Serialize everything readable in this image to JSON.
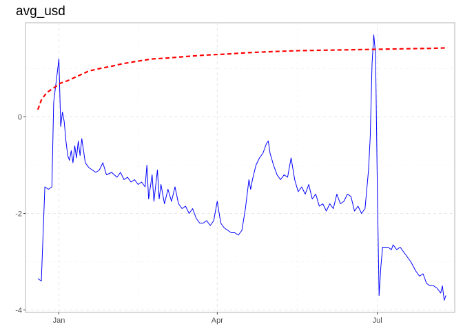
{
  "chart_data": {
    "type": "line",
    "title": "avg_usd",
    "xlabel": "",
    "ylabel": "",
    "x_range": [
      "2022-12-13",
      "2023-08-14"
    ],
    "ylim": [
      -4.05,
      1.95
    ],
    "grid": true,
    "grid_style": "dashed",
    "x_ticks": [
      {
        "date": "2023-01-01",
        "label": "Jan"
      },
      {
        "date": "2023-04-01",
        "label": "Apr"
      },
      {
        "date": "2023-07-01",
        "label": "Jul"
      }
    ],
    "y_ticks": [
      {
        "value": -4,
        "label": "-4"
      },
      {
        "value": -2,
        "label": "-2"
      },
      {
        "value": 0,
        "label": "0"
      }
    ],
    "series": [
      {
        "color": "#0000ff",
        "style": "solid",
        "points": [
          [
            "2022-12-20",
            -3.35
          ],
          [
            "2022-12-22",
            -3.4
          ],
          [
            "2022-12-24",
            -1.45
          ],
          [
            "2022-12-26",
            -1.5
          ],
          [
            "2022-12-28",
            -1.45
          ],
          [
            "2022-12-29",
            0.3
          ],
          [
            "2022-12-30",
            0.6
          ],
          [
            "2022-12-31",
            0.9
          ],
          [
            "2023-01-01",
            1.2
          ],
          [
            "2023-01-02",
            -0.2
          ],
          [
            "2023-01-03",
            0.1
          ],
          [
            "2023-01-04",
            -0.1
          ],
          [
            "2023-01-05",
            -0.5
          ],
          [
            "2023-01-06",
            -0.8
          ],
          [
            "2023-01-07",
            -0.9
          ],
          [
            "2023-01-08",
            -0.7
          ],
          [
            "2023-01-09",
            -0.95
          ],
          [
            "2023-01-10",
            -0.6
          ],
          [
            "2023-01-11",
            -0.85
          ],
          [
            "2023-01-12",
            -0.5
          ],
          [
            "2023-01-13",
            -0.8
          ],
          [
            "2023-01-14",
            -0.45
          ],
          [
            "2023-01-16",
            -0.95
          ],
          [
            "2023-01-18",
            -1.05
          ],
          [
            "2023-01-20",
            -1.1
          ],
          [
            "2023-01-22",
            -1.15
          ],
          [
            "2023-01-24",
            -1.1
          ],
          [
            "2023-01-26",
            -0.95
          ],
          [
            "2023-01-28",
            -1.2
          ],
          [
            "2023-01-31",
            -1.15
          ],
          [
            "2023-02-03",
            -1.25
          ],
          [
            "2023-02-05",
            -1.15
          ],
          [
            "2023-02-07",
            -1.3
          ],
          [
            "2023-02-09",
            -1.25
          ],
          [
            "2023-02-11",
            -1.35
          ],
          [
            "2023-02-13",
            -1.3
          ],
          [
            "2023-02-15",
            -1.4
          ],
          [
            "2023-02-17",
            -1.35
          ],
          [
            "2023-02-19",
            -1.45
          ],
          [
            "2023-02-20",
            -1.0
          ],
          [
            "2023-02-21",
            -1.7
          ],
          [
            "2023-02-23",
            -1.2
          ],
          [
            "2023-02-24",
            -1.75
          ],
          [
            "2023-02-26",
            -1.1
          ],
          [
            "2023-02-27",
            -1.7
          ],
          [
            "2023-02-28",
            -1.4
          ],
          [
            "2023-03-02",
            -1.8
          ],
          [
            "2023-03-04",
            -1.5
          ],
          [
            "2023-03-06",
            -1.75
          ],
          [
            "2023-03-08",
            -1.45
          ],
          [
            "2023-03-10",
            -1.8
          ],
          [
            "2023-03-12",
            -1.9
          ],
          [
            "2023-03-14",
            -1.85
          ],
          [
            "2023-03-16",
            -2.0
          ],
          [
            "2023-03-18",
            -1.9
          ],
          [
            "2023-03-20",
            -2.1
          ],
          [
            "2023-03-22",
            -2.2
          ],
          [
            "2023-03-24",
            -2.2
          ],
          [
            "2023-03-26",
            -2.15
          ],
          [
            "2023-03-28",
            -2.25
          ],
          [
            "2023-03-30",
            -2.15
          ],
          [
            "2023-04-01",
            -1.75
          ],
          [
            "2023-04-03",
            -2.2
          ],
          [
            "2023-04-05",
            -2.3
          ],
          [
            "2023-04-07",
            -2.35
          ],
          [
            "2023-04-09",
            -2.4
          ],
          [
            "2023-04-11",
            -2.4
          ],
          [
            "2023-04-13",
            -2.45
          ],
          [
            "2023-04-15",
            -2.35
          ],
          [
            "2023-04-17",
            -1.9
          ],
          [
            "2023-04-19",
            -1.3
          ],
          [
            "2023-04-20",
            -1.5
          ],
          [
            "2023-04-21",
            -1.3
          ],
          [
            "2023-04-23",
            -1.0
          ],
          [
            "2023-04-25",
            -0.85
          ],
          [
            "2023-04-27",
            -0.75
          ],
          [
            "2023-04-29",
            -0.55
          ],
          [
            "2023-04-30",
            -0.5
          ],
          [
            "2023-05-01",
            -0.75
          ],
          [
            "2023-05-03",
            -1.0
          ],
          [
            "2023-05-05",
            -1.2
          ],
          [
            "2023-05-07",
            -1.3
          ],
          [
            "2023-05-09",
            -1.2
          ],
          [
            "2023-05-11",
            -1.25
          ],
          [
            "2023-05-13",
            -0.85
          ],
          [
            "2023-05-15",
            -1.3
          ],
          [
            "2023-05-17",
            -1.55
          ],
          [
            "2023-05-19",
            -1.45
          ],
          [
            "2023-05-21",
            -1.6
          ],
          [
            "2023-05-23",
            -1.4
          ],
          [
            "2023-05-25",
            -1.7
          ],
          [
            "2023-05-27",
            -1.6
          ],
          [
            "2023-05-29",
            -1.85
          ],
          [
            "2023-05-31",
            -1.8
          ],
          [
            "2023-06-02",
            -1.95
          ],
          [
            "2023-06-04",
            -1.8
          ],
          [
            "2023-06-06",
            -1.9
          ],
          [
            "2023-06-08",
            -1.6
          ],
          [
            "2023-06-10",
            -1.8
          ],
          [
            "2023-06-12",
            -1.75
          ],
          [
            "2023-06-14",
            -1.6
          ],
          [
            "2023-06-16",
            -1.65
          ],
          [
            "2023-06-18",
            -1.95
          ],
          [
            "2023-06-20",
            -1.85
          ],
          [
            "2023-06-22",
            -2.0
          ],
          [
            "2023-06-24",
            -1.9
          ],
          [
            "2023-06-26",
            -1.1
          ],
          [
            "2023-06-27",
            -0.4
          ],
          [
            "2023-06-28",
            1.1
          ],
          [
            "2023-06-29",
            1.7
          ],
          [
            "2023-06-30",
            1.3
          ],
          [
            "2023-07-01",
            -1.5
          ],
          [
            "2023-07-02",
            -3.7
          ],
          [
            "2023-07-03",
            -3.1
          ],
          [
            "2023-07-04",
            -2.7
          ],
          [
            "2023-07-07",
            -2.7
          ],
          [
            "2023-07-09",
            -2.75
          ],
          [
            "2023-07-10",
            -2.65
          ],
          [
            "2023-07-12",
            -2.75
          ],
          [
            "2023-07-14",
            -2.7
          ],
          [
            "2023-07-17",
            -2.85
          ],
          [
            "2023-07-20",
            -3.0
          ],
          [
            "2023-07-23",
            -3.2
          ],
          [
            "2023-07-25",
            -3.3
          ],
          [
            "2023-07-27",
            -3.25
          ],
          [
            "2023-07-29",
            -3.45
          ],
          [
            "2023-07-31",
            -3.5
          ],
          [
            "2023-08-02",
            -3.5
          ],
          [
            "2023-08-04",
            -3.55
          ],
          [
            "2023-08-06",
            -3.65
          ],
          [
            "2023-08-07",
            -3.5
          ],
          [
            "2023-08-08",
            -3.8
          ],
          [
            "2023-08-09",
            -3.7
          ]
        ]
      },
      {
        "color": "#ff0000",
        "style": "dashed",
        "points": [
          [
            "2022-12-20",
            0.15
          ],
          [
            "2022-12-22",
            0.35
          ],
          [
            "2022-12-25",
            0.5
          ],
          [
            "2022-12-29",
            0.6
          ],
          [
            "2023-01-02",
            0.7
          ],
          [
            "2023-01-06",
            0.75
          ],
          [
            "2023-01-12",
            0.85
          ],
          [
            "2023-01-18",
            0.95
          ],
          [
            "2023-01-24",
            1.0
          ],
          [
            "2023-01-31",
            1.05
          ],
          [
            "2023-02-06",
            1.1
          ],
          [
            "2023-02-14",
            1.15
          ],
          [
            "2023-02-23",
            1.2
          ],
          [
            "2023-03-04",
            1.22
          ],
          [
            "2023-03-14",
            1.25
          ],
          [
            "2023-03-25",
            1.28
          ],
          [
            "2023-04-06",
            1.3
          ],
          [
            "2023-04-18",
            1.33
          ],
          [
            "2023-05-01",
            1.35
          ],
          [
            "2023-05-15",
            1.37
          ],
          [
            "2023-05-30",
            1.38
          ],
          [
            "2023-06-15",
            1.39
          ],
          [
            "2023-07-01",
            1.4
          ],
          [
            "2023-07-15",
            1.41
          ],
          [
            "2023-08-01",
            1.42
          ],
          [
            "2023-08-10",
            1.43
          ]
        ]
      }
    ]
  }
}
